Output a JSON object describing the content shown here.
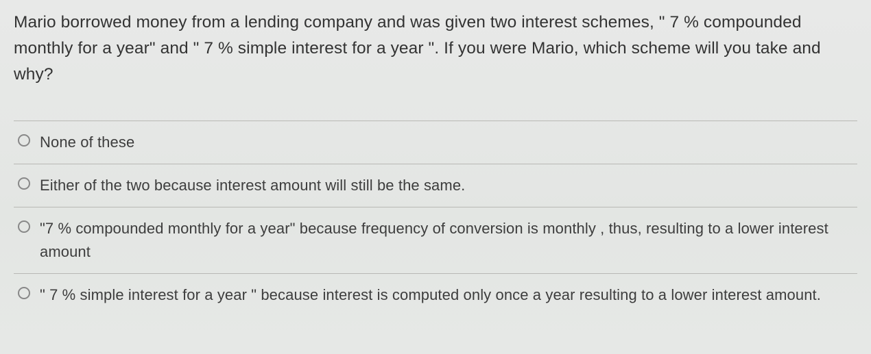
{
  "question": {
    "text": "Mario borrowed money from a lending company and was given two interest schemes, \" 7 % compounded monthly for a year\" and \" 7 % simple interest for a year \". If you were Mario, which scheme will you take and why?",
    "text_color": "#333333",
    "fontsize": 24.5
  },
  "options": [
    {
      "label": "None of these",
      "selected": false
    },
    {
      "label": "Either of the two because interest amount will still be the same.",
      "selected": false
    },
    {
      "label": "\"7 % compounded monthly for a year\" because frequency of conversion is monthly , thus, resulting to a lower interest amount",
      "selected": false
    },
    {
      "label": "\" 7 % simple interest for a year \" because interest is computed only once a year resulting to a lower interest amount.",
      "selected": false
    }
  ],
  "styling": {
    "background_gradient_top": "#e8e9e8",
    "background_gradient_bottom": "#e6e8e6",
    "divider_color": "#b8b8b4",
    "radio_border_color": "#888888",
    "option_text_color": "#3d3d3d",
    "option_fontsize": 22
  }
}
